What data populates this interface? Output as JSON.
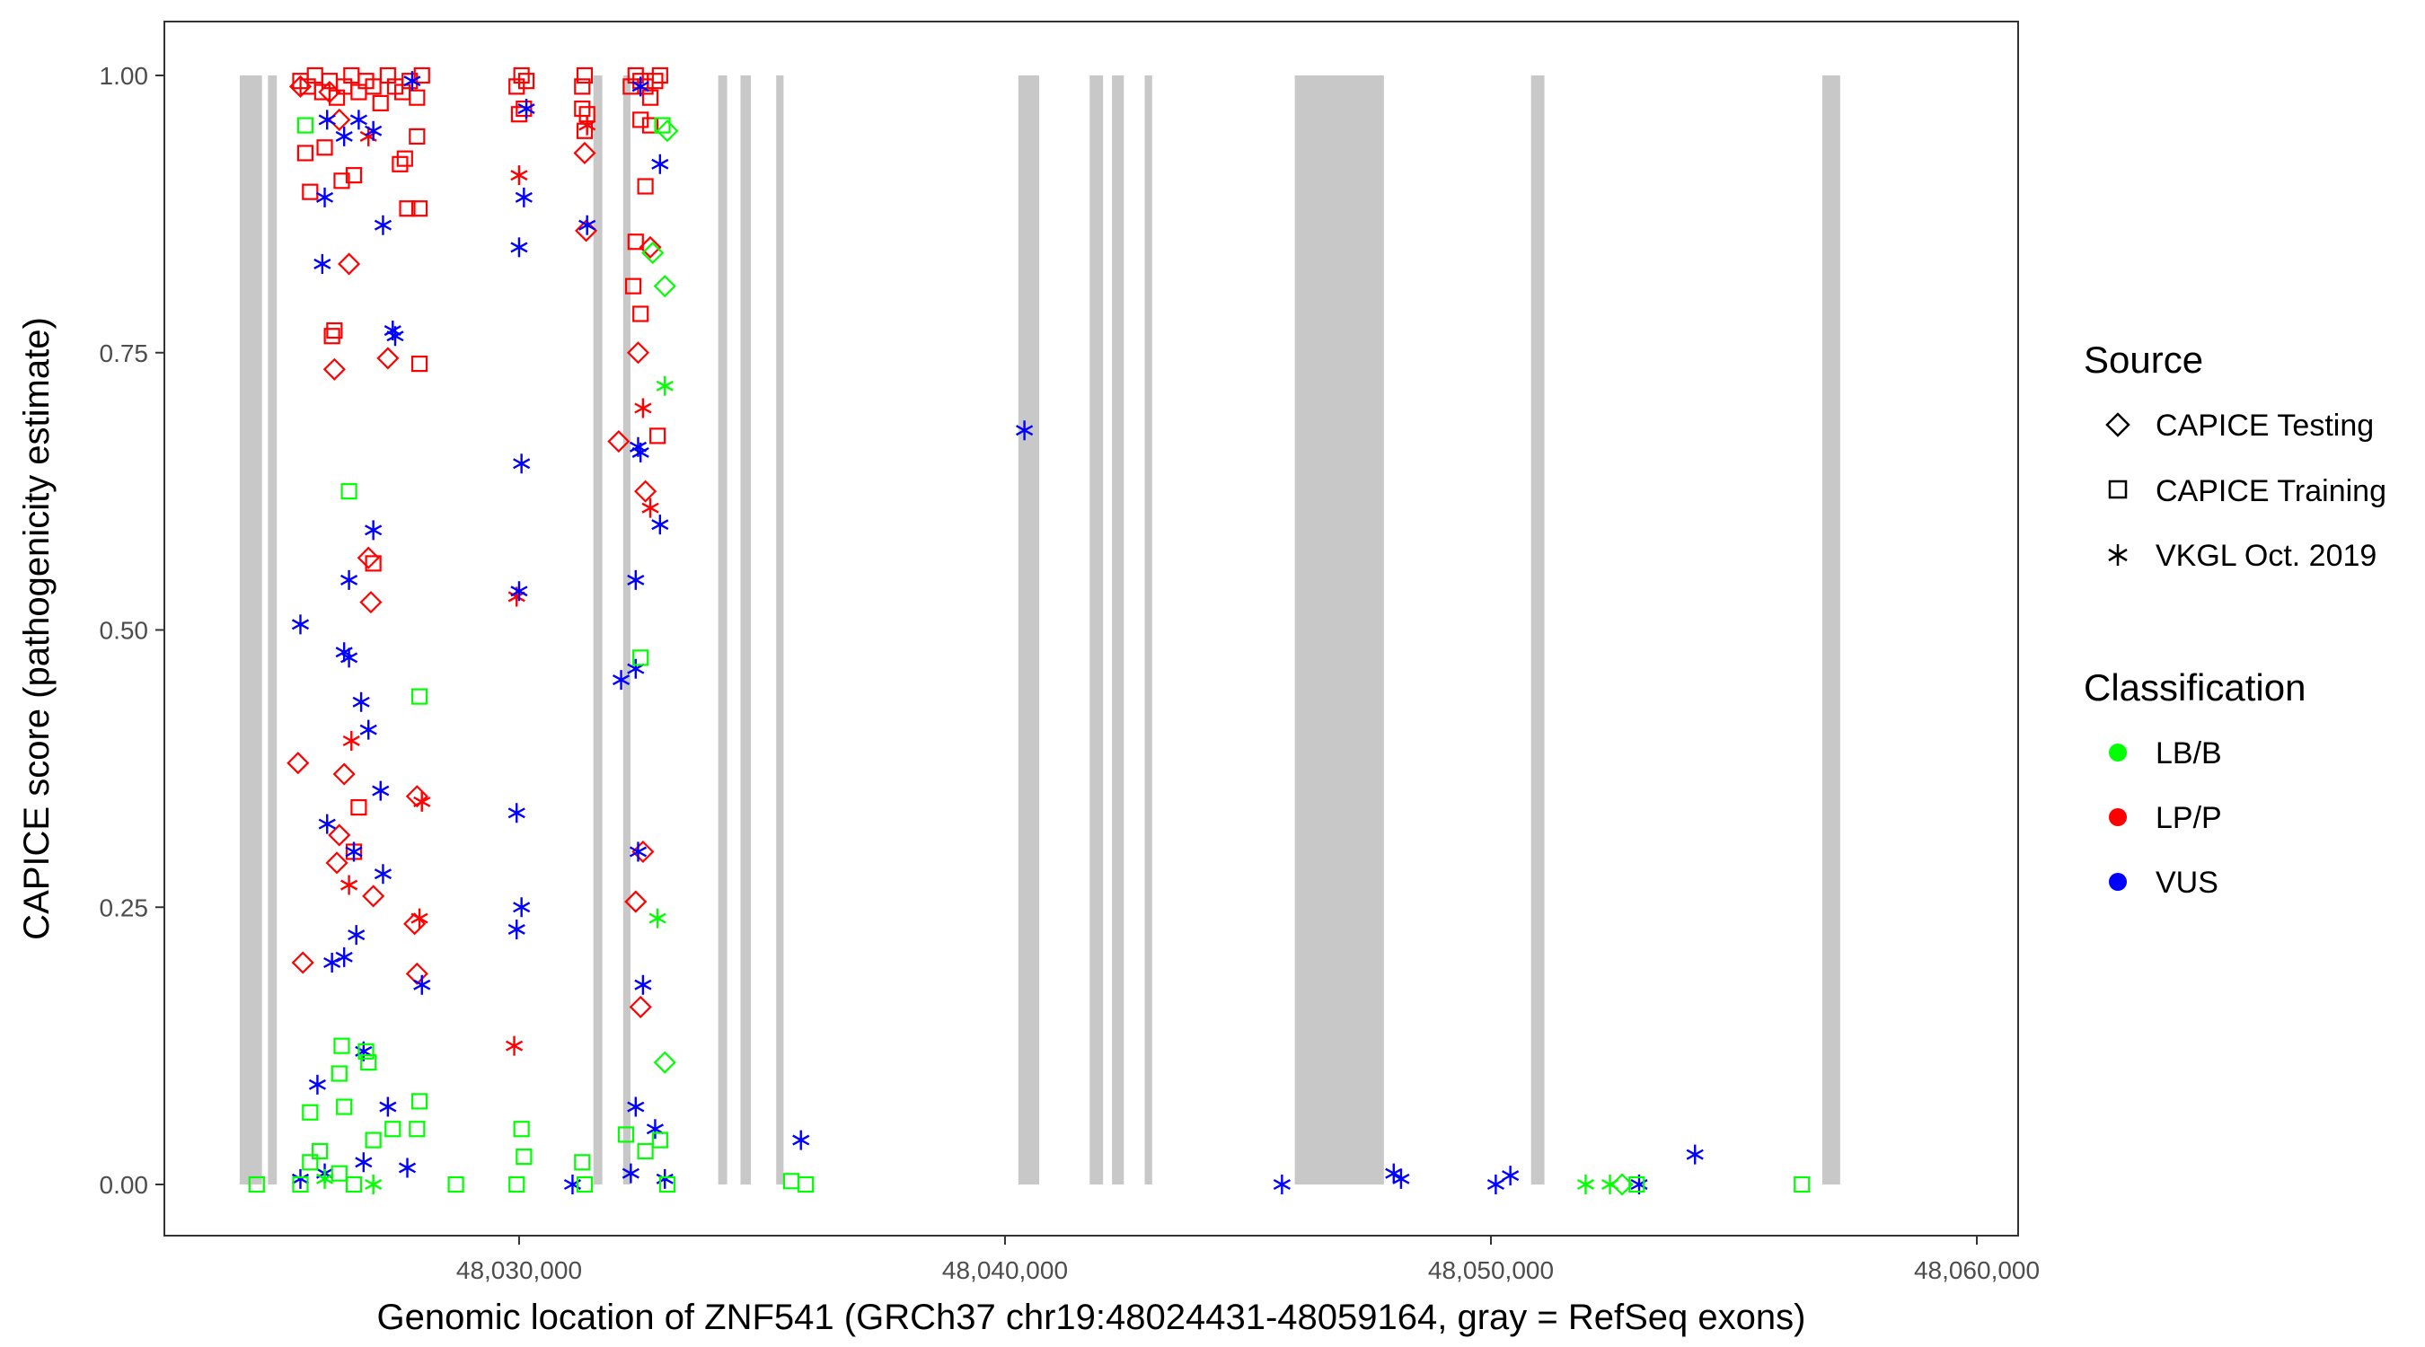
{
  "chart_data": {
    "type": "scatter",
    "title": "",
    "xlabel": "Genomic location of ZNF541 (GRCh37 chr19:48024431-48059164, gray = RefSeq exons)",
    "ylabel": "CAPICE score (pathogenicity estimate)",
    "xlim": [
      48022700,
      48060850
    ],
    "ylim": [
      -0.045,
      1.05
    ],
    "xticks": [
      48030000,
      48040000,
      48050000,
      48060000
    ],
    "xtick_labels": [
      "48,030,000",
      "48,040,000",
      "48,050,000",
      "48,060,000"
    ],
    "yticks": [
      0,
      0.25,
      0.5,
      0.75,
      1.0
    ],
    "ytick_labels": [
      "0.00",
      "0.25",
      "0.50",
      "0.75",
      "1.00"
    ],
    "grid": false,
    "exons": [
      [
        48024251,
        48024709
      ],
      [
        48024832,
        48025015
      ],
      [
        48031529,
        48031713
      ],
      [
        48032141,
        48032294
      ],
      [
        48034098,
        48034281
      ],
      [
        48034557,
        48034771
      ],
      [
        48035291,
        48035443
      ],
      [
        48040275,
        48040703
      ],
      [
        48041743,
        48042018
      ],
      [
        48042202,
        48042446
      ],
      [
        48042875,
        48043028
      ],
      [
        48045963,
        48047798
      ],
      [
        48050826,
        48051101
      ],
      [
        48056820,
        48057187
      ]
    ],
    "legend": {
      "placement": "right",
      "source_title": "Source",
      "source_items": [
        {
          "label": "CAPICE Testing",
          "shape": "diamond"
        },
        {
          "label": "CAPICE Training",
          "shape": "square"
        },
        {
          "label": "VKGL Oct. 2019",
          "shape": "asterisk"
        }
      ],
      "class_title": "Classification",
      "class_items": [
        {
          "label": "LB/B",
          "color": "#00ff00"
        },
        {
          "label": "LP/P",
          "color": "#ff0000"
        },
        {
          "label": "VUS",
          "color": "#0000ff"
        }
      ]
    },
    "series": [
      {
        "source": "CAPICE Training",
        "class": "LP/P",
        "points": [
          [
            48025500,
            0.995
          ],
          [
            48025650,
            0.99
          ],
          [
            48025800,
            1.0
          ],
          [
            48025950,
            0.985
          ],
          [
            48026100,
            0.995
          ],
          [
            48026250,
            0.98
          ],
          [
            48026400,
            0.99
          ],
          [
            48026550,
            1.0
          ],
          [
            48026700,
            0.985
          ],
          [
            48026850,
            0.995
          ],
          [
            48027000,
            0.99
          ],
          [
            48027150,
            0.975
          ],
          [
            48027300,
            1.0
          ],
          [
            48027450,
            0.99
          ],
          [
            48027600,
            0.985
          ],
          [
            48027750,
            0.995
          ],
          [
            48027900,
            0.98
          ],
          [
            48028000,
            1.0
          ],
          [
            48025600,
            0.93
          ],
          [
            48025700,
            0.895
          ],
          [
            48026000,
            0.935
          ],
          [
            48026350,
            0.905
          ],
          [
            48026600,
            0.91
          ],
          [
            48027550,
            0.92
          ],
          [
            48027650,
            0.925
          ],
          [
            48027700,
            0.88
          ],
          [
            48027900,
            0.945
          ],
          [
            48027950,
            0.88
          ],
          [
            48026200,
            0.77
          ],
          [
            48026150,
            0.765
          ],
          [
            48027950,
            0.74
          ],
          [
            48027000,
            0.56
          ],
          [
            48026700,
            0.34
          ],
          [
            48026600,
            0.3
          ],
          [
            48029950,
            0.99
          ],
          [
            48030050,
            1.0
          ],
          [
            48030150,
            0.995
          ],
          [
            48030000,
            0.965
          ],
          [
            48030100,
            0.97
          ],
          [
            48031300,
            0.99
          ],
          [
            48031350,
            1.0
          ],
          [
            48031300,
            0.97
          ],
          [
            48031400,
            0.965
          ],
          [
            48031350,
            0.95
          ],
          [
            48032300,
            0.99
          ],
          [
            48032400,
            1.0
          ],
          [
            48032500,
            0.995
          ],
          [
            48032600,
            0.99
          ],
          [
            48032700,
            0.98
          ],
          [
            48032800,
            0.995
          ],
          [
            48032900,
            1.0
          ],
          [
            48032500,
            0.96
          ],
          [
            48032700,
            0.955
          ],
          [
            48032600,
            0.9
          ],
          [
            48032400,
            0.85
          ],
          [
            48032350,
            0.81
          ],
          [
            48032500,
            0.785
          ],
          [
            48032850,
            0.675
          ]
        ]
      },
      {
        "source": "CAPICE Testing",
        "class": "LP/P",
        "points": [
          [
            48025500,
            0.99
          ],
          [
            48026100,
            0.985
          ],
          [
            48026300,
            0.96
          ],
          [
            48026500,
            0.83
          ],
          [
            48026200,
            0.735
          ],
          [
            48027300,
            0.745
          ],
          [
            48026900,
            0.565
          ],
          [
            48026950,
            0.525
          ],
          [
            48025450,
            0.38
          ],
          [
            48026400,
            0.37
          ],
          [
            48026300,
            0.315
          ],
          [
            48026250,
            0.29
          ],
          [
            48027000,
            0.26
          ],
          [
            48027900,
            0.35
          ],
          [
            48027850,
            0.235
          ],
          [
            48027900,
            0.19
          ],
          [
            48025550,
            0.2
          ],
          [
            48031350,
            0.93
          ],
          [
            48031380,
            0.86
          ],
          [
            48032050,
            0.67
          ],
          [
            48032450,
            0.75
          ],
          [
            48032700,
            0.845
          ],
          [
            48032600,
            0.625
          ],
          [
            48032400,
            0.255
          ],
          [
            48032500,
            0.16
          ],
          [
            48032550,
            0.3
          ]
        ]
      },
      {
        "source": "VKGL Oct. 2019",
        "class": "LP/P",
        "points": [
          [
            48026900,
            0.945
          ],
          [
            48026550,
            0.4
          ],
          [
            48026500,
            0.27
          ],
          [
            48028000,
            0.345
          ],
          [
            48027950,
            0.24
          ],
          [
            48030000,
            0.91
          ],
          [
            48029950,
            0.53
          ],
          [
            48029900,
            0.125
          ],
          [
            48031400,
            0.955
          ],
          [
            48032550,
            0.7
          ],
          [
            48032700,
            0.61
          ]
        ]
      },
      {
        "source": "VKGL Oct. 2019",
        "class": "VUS",
        "points": [
          [
            48026050,
            0.96
          ],
          [
            48026400,
            0.945
          ],
          [
            48026700,
            0.96
          ],
          [
            48027000,
            0.95
          ],
          [
            48027800,
            0.995
          ],
          [
            48026000,
            0.89
          ],
          [
            48027200,
            0.865
          ],
          [
            48025950,
            0.83
          ],
          [
            48027400,
            0.77
          ],
          [
            48027450,
            0.765
          ],
          [
            48027000,
            0.59
          ],
          [
            48026500,
            0.545
          ],
          [
            48025500,
            0.505
          ],
          [
            48026400,
            0.48
          ],
          [
            48026500,
            0.475
          ],
          [
            48026750,
            0.435
          ],
          [
            48026900,
            0.41
          ],
          [
            48027150,
            0.355
          ],
          [
            48026050,
            0.325
          ],
          [
            48026600,
            0.3
          ],
          [
            48027200,
            0.28
          ],
          [
            48026650,
            0.225
          ],
          [
            48026150,
            0.2
          ],
          [
            48026400,
            0.205
          ],
          [
            48028000,
            0.18
          ],
          [
            48026800,
            0.12
          ],
          [
            48025850,
            0.09
          ],
          [
            48027300,
            0.07
          ],
          [
            48030000,
            0.845
          ],
          [
            48030100,
            0.89
          ],
          [
            48030150,
            0.97
          ],
          [
            48030050,
            0.65
          ],
          [
            48030000,
            0.535
          ],
          [
            48029950,
            0.335
          ],
          [
            48030050,
            0.25
          ],
          [
            48029950,
            0.23
          ],
          [
            48031400,
            0.865
          ],
          [
            48032100,
            0.455
          ],
          [
            48032450,
            0.665
          ],
          [
            48032500,
            0.66
          ],
          [
            48032400,
            0.545
          ],
          [
            48032400,
            0.465
          ],
          [
            48032450,
            0.3
          ],
          [
            48032550,
            0.18
          ],
          [
            48032900,
            0.92
          ],
          [
            48032900,
            0.595
          ],
          [
            48032400,
            0.07
          ],
          [
            48032800,
            0.05
          ],
          [
            48032500,
            0.99
          ],
          [
            48035800,
            0.04
          ],
          [
            48040400,
            0.68
          ],
          [
            48045700,
            0.0
          ],
          [
            48048000,
            0.01
          ],
          [
            48048150,
            0.005
          ],
          [
            48050100,
            0.0
          ],
          [
            48050400,
            0.008
          ],
          [
            48053050,
            0.0
          ],
          [
            48054200,
            0.027
          ],
          [
            48031100,
            0.0
          ],
          [
            48032300,
            0.01
          ],
          [
            48033000,
            0.005
          ],
          [
            48025500,
            0.005
          ],
          [
            48026000,
            0.01
          ],
          [
            48026800,
            0.02
          ],
          [
            48027700,
            0.015
          ]
        ]
      },
      {
        "source": "CAPICE Training",
        "class": "LB/B",
        "points": [
          [
            48024600,
            0.0
          ],
          [
            48025500,
            0.0
          ],
          [
            48025700,
            0.02
          ],
          [
            48025900,
            0.03
          ],
          [
            48026300,
            0.01
          ],
          [
            48026600,
            0.0
          ],
          [
            48027000,
            0.04
          ],
          [
            48027400,
            0.05
          ],
          [
            48027900,
            0.05
          ],
          [
            48028700,
            0.0
          ],
          [
            48029950,
            0.0
          ],
          [
            48030050,
            0.05
          ],
          [
            48030100,
            0.025
          ],
          [
            48031300,
            0.02
          ],
          [
            48031350,
            0.0
          ],
          [
            48032200,
            0.045
          ],
          [
            48032600,
            0.03
          ],
          [
            48032900,
            0.04
          ],
          [
            48033050,
            0.0
          ],
          [
            48035600,
            0.003
          ],
          [
            48035900,
            0.0
          ],
          [
            48053000,
            0.0
          ],
          [
            48056400,
            0.0
          ],
          [
            48026350,
            0.125
          ],
          [
            48026850,
            0.12
          ],
          [
            48027950,
            0.075
          ],
          [
            48026900,
            0.11
          ],
          [
            48026300,
            0.1
          ],
          [
            48025700,
            0.065
          ],
          [
            48026400,
            0.07
          ],
          [
            48027950,
            0.44
          ],
          [
            48026500,
            0.625
          ],
          [
            48032500,
            0.475
          ],
          [
            48025600,
            0.955
          ],
          [
            48032950,
            0.955
          ]
        ]
      },
      {
        "source": "CAPICE Testing",
        "class": "LB/B",
        "points": [
          [
            48032750,
            0.84
          ],
          [
            48033000,
            0.81
          ],
          [
            48033000,
            0.11
          ],
          [
            48033050,
            0.95
          ],
          [
            48052700,
            0.0
          ]
        ]
      },
      {
        "source": "VKGL Oct. 2019",
        "class": "LB/B",
        "points": [
          [
            48033000,
            0.72
          ],
          [
            48032850,
            0.24
          ],
          [
            48051950,
            0.0
          ],
          [
            48052450,
            0.0
          ],
          [
            48026000,
            0.005
          ],
          [
            48027000,
            0.0
          ]
        ]
      }
    ]
  }
}
